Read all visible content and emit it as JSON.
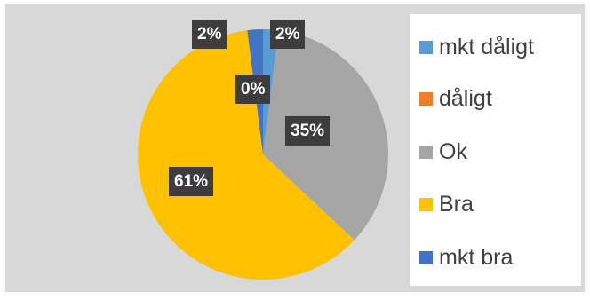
{
  "chart_data": {
    "type": "pie",
    "categories": [
      "mkt dåligt",
      "dåligt",
      "Ok",
      "Bra",
      "mkt bra"
    ],
    "values": [
      2,
      0,
      35,
      61,
      2
    ],
    "data_labels": [
      "2%",
      "0%",
      "35%",
      "61%",
      "2%"
    ],
    "colors": [
      "#5b9bd5",
      "#ed7d31",
      "#a5a5a5",
      "#ffc000",
      "#4472c4"
    ],
    "legend_position": "right",
    "background": "#d8d8d8",
    "label_style": "dark boxed white bold"
  }
}
